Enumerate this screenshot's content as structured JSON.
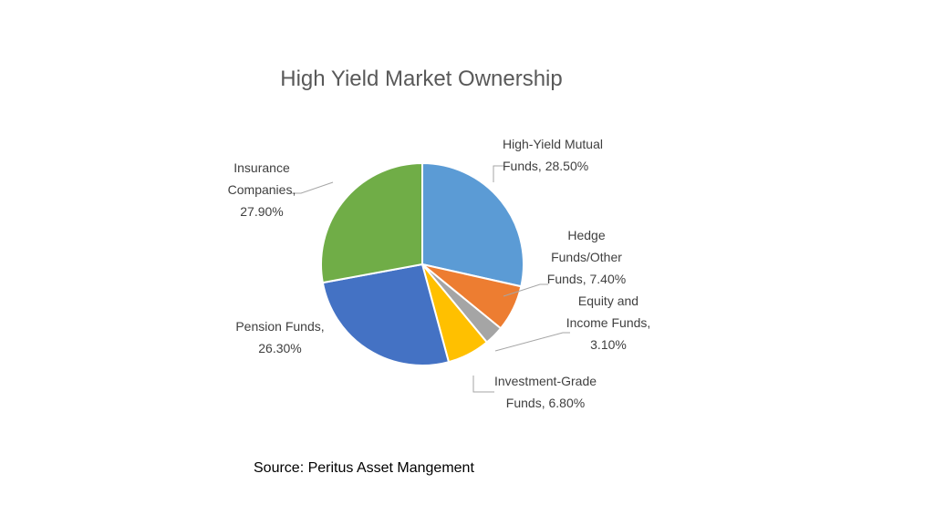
{
  "colors": {
    "high_yield_mutual": "#5B9BD5",
    "hedge_funds": "#ED7D31",
    "equity_income": "#A5A5A5",
    "investment_grade": "#FFC000",
    "pension": "#4472C4",
    "insurance": "#70AD47",
    "slice_border": "#FFFFFF",
    "leader_line": "#A6A6A6"
  },
  "source_text": "Source: Peritus Asset Mangement",
  "chart_data": {
    "type": "pie",
    "title": "High Yield Market Ownership",
    "unit": "%",
    "slices": [
      {
        "key": "high_yield_mutual",
        "value": 28.5,
        "label_lines": [
          "High-Yield Mutual",
          "Funds, 28.50%"
        ]
      },
      {
        "key": "hedge_funds",
        "value": 7.4,
        "label_lines": [
          "Hedge",
          "Funds/Other",
          "Funds, 7.40%"
        ]
      },
      {
        "key": "equity_income",
        "value": 3.1,
        "label_lines": [
          "Equity and",
          "Income Funds,",
          "3.10%"
        ]
      },
      {
        "key": "investment_grade",
        "value": 6.8,
        "label_lines": [
          "Investment-Grade",
          "Funds, 6.80%"
        ]
      },
      {
        "key": "pension",
        "value": 26.3,
        "label_lines": [
          "Pension Funds,",
          "26.30%"
        ]
      },
      {
        "key": "insurance",
        "value": 27.9,
        "label_lines": [
          "Insurance",
          "Companies,",
          "27.90%"
        ]
      }
    ]
  }
}
